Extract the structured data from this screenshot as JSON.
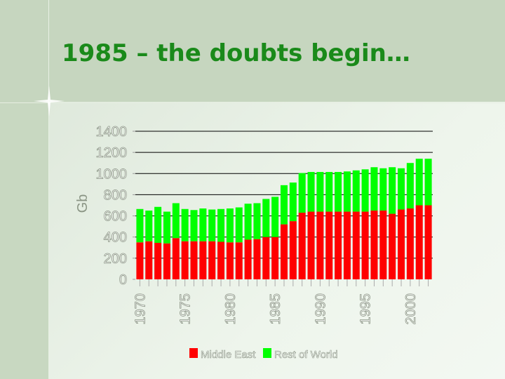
{
  "slide": {
    "title": "1985 – the doubts begin…"
  },
  "colors": {
    "middle_east": "#ff0000",
    "rest_of_world": "#00ff00",
    "title": "#1a8a1a"
  },
  "chart_data": {
    "type": "bar",
    "stacked": true,
    "title": "",
    "xlabel": "",
    "ylabel": "Gb",
    "ylim": [
      0,
      1400
    ],
    "yticks": [
      0,
      200,
      400,
      600,
      800,
      1000,
      1200,
      1400
    ],
    "categories": [
      1970,
      1971,
      1972,
      1973,
      1974,
      1975,
      1976,
      1977,
      1978,
      1979,
      1980,
      1981,
      1982,
      1983,
      1984,
      1985,
      1986,
      1987,
      1988,
      1989,
      1990,
      1991,
      1992,
      1993,
      1994,
      1995,
      1996,
      1997,
      1998,
      1999,
      2000,
      2001,
      2002
    ],
    "xtick_labels": [
      "1970",
      "1975",
      "1980",
      "1985",
      "1990",
      "1995",
      "2000"
    ],
    "series": [
      {
        "name": "Middle East",
        "values": [
          350,
          360,
          345,
          340,
          390,
          360,
          360,
          360,
          360,
          355,
          350,
          350,
          375,
          380,
          400,
          400,
          520,
          550,
          630,
          640,
          640,
          640,
          640,
          640,
          640,
          640,
          650,
          650,
          620,
          660,
          670,
          700,
          700
        ]
      },
      {
        "name": "Rest of World",
        "values": [
          315,
          290,
          340,
          300,
          330,
          305,
          295,
          310,
          300,
          310,
          320,
          330,
          340,
          340,
          360,
          380,
          370,
          365,
          375,
          375,
          375,
          375,
          375,
          380,
          390,
          400,
          410,
          400,
          440,
          390,
          430,
          440,
          440
        ]
      }
    ],
    "legend": {
      "position": "bottom"
    },
    "grid": true
  }
}
